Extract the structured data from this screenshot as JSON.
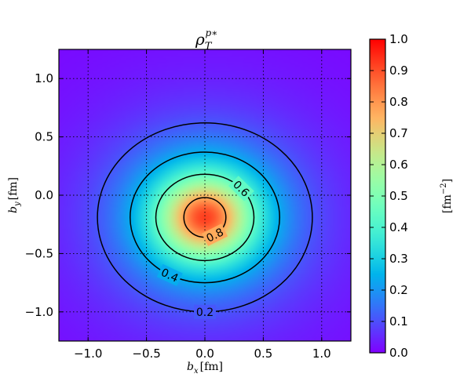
{
  "chart_data": {
    "type": "heatmap",
    "title": {
      "base": "ρ",
      "sub": "T",
      "sup": "p∗"
    },
    "xlabel": {
      "var": "b",
      "sub": "x",
      "unit": "[fm]"
    },
    "ylabel": {
      "var": "b",
      "sub": "y",
      "unit": "[fm]"
    },
    "xlim": [
      -1.25,
      1.25
    ],
    "ylim": [
      -1.25,
      1.25
    ],
    "xticks": [
      -1.0,
      -0.5,
      0.0,
      0.5,
      1.0
    ],
    "xtick_labels": [
      "−1.0",
      "−0.5",
      "0.0",
      "0.5",
      "1.0"
    ],
    "yticks": [
      -1.0,
      -0.5,
      0.0,
      0.5,
      1.0
    ],
    "ytick_labels": [
      "−1.0",
      "−0.5",
      "0.0",
      "0.5",
      "1.0"
    ],
    "grid": true,
    "colormap": "rainbow",
    "colorbar": {
      "range": [
        0.0,
        1.0
      ],
      "ticks": [
        0.0,
        0.1,
        0.2,
        0.3,
        0.4,
        0.5,
        0.6,
        0.7,
        0.8,
        0.9,
        1.0
      ],
      "tick_labels": [
        "0.0",
        "0.1",
        "0.2",
        "0.3",
        "0.4",
        "0.5",
        "0.6",
        "0.7",
        "0.8",
        "0.9",
        "1.0"
      ],
      "label": {
        "text": "[fm",
        "sup": "−2",
        "close": "]"
      }
    },
    "distribution_center": [
      0.0,
      -0.19
    ],
    "peak_value": 0.92,
    "contours": [
      {
        "level": 0.2,
        "label": "0.2",
        "radius_x": 0.92,
        "radius_y": 0.81,
        "center": [
          0.0,
          -0.19
        ]
      },
      {
        "level": 0.4,
        "label": "0.4",
        "radius_x": 0.64,
        "radius_y": 0.56,
        "center": [
          0.0,
          -0.19
        ]
      },
      {
        "level": 0.6,
        "label": "0.6",
        "radius_x": 0.42,
        "radius_y": 0.37,
        "center": [
          0.0,
          -0.19
        ]
      },
      {
        "level": 0.8,
        "label": "0.8",
        "radius_x": 0.18,
        "radius_y": 0.17,
        "center": [
          0.0,
          -0.19
        ]
      }
    ]
  }
}
